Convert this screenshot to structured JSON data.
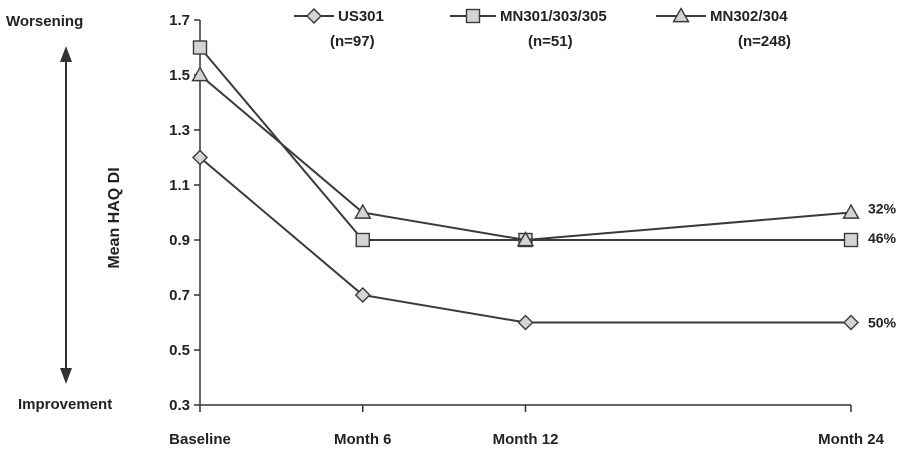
{
  "chart_data": {
    "type": "line",
    "categories": [
      "Baseline",
      "Month 6",
      "Month 12",
      "Month 24"
    ],
    "x_months": [
      0,
      6,
      12,
      24
    ],
    "ylabel": "Mean HAQ DI",
    "ylim": [
      0.3,
      1.7
    ],
    "yticks": [
      0.3,
      0.5,
      0.7,
      0.9,
      1.1,
      1.3,
      1.5,
      1.7
    ],
    "ytick_labels": [
      "0.3",
      "0.5",
      "0.7",
      "0.9",
      "1.1",
      "1.3",
      "1.5",
      "1.7"
    ],
    "top_label": "Worsening",
    "bottom_label": "Improvement",
    "grid": false,
    "legend_position": "top",
    "series": [
      {
        "name": "US301",
        "n_label": "(n=97)",
        "marker": "diamond",
        "values": [
          1.2,
          0.7,
          0.6,
          0.6
        ],
        "end_label": "50%"
      },
      {
        "name": "MN301/303/305",
        "n_label": "(n=51)",
        "marker": "square",
        "values": [
          1.6,
          0.9,
          0.9,
          0.9
        ],
        "end_label": "46%"
      },
      {
        "name": "MN302/304",
        "n_label": "(n=248)",
        "marker": "triangle",
        "values": [
          1.5,
          1.0,
          0.9,
          1.0
        ],
        "end_label": "32%"
      }
    ],
    "colors": {
      "line": "#3a3a3a",
      "marker_fill": "#d4d4d4",
      "axis": "#333333"
    }
  }
}
